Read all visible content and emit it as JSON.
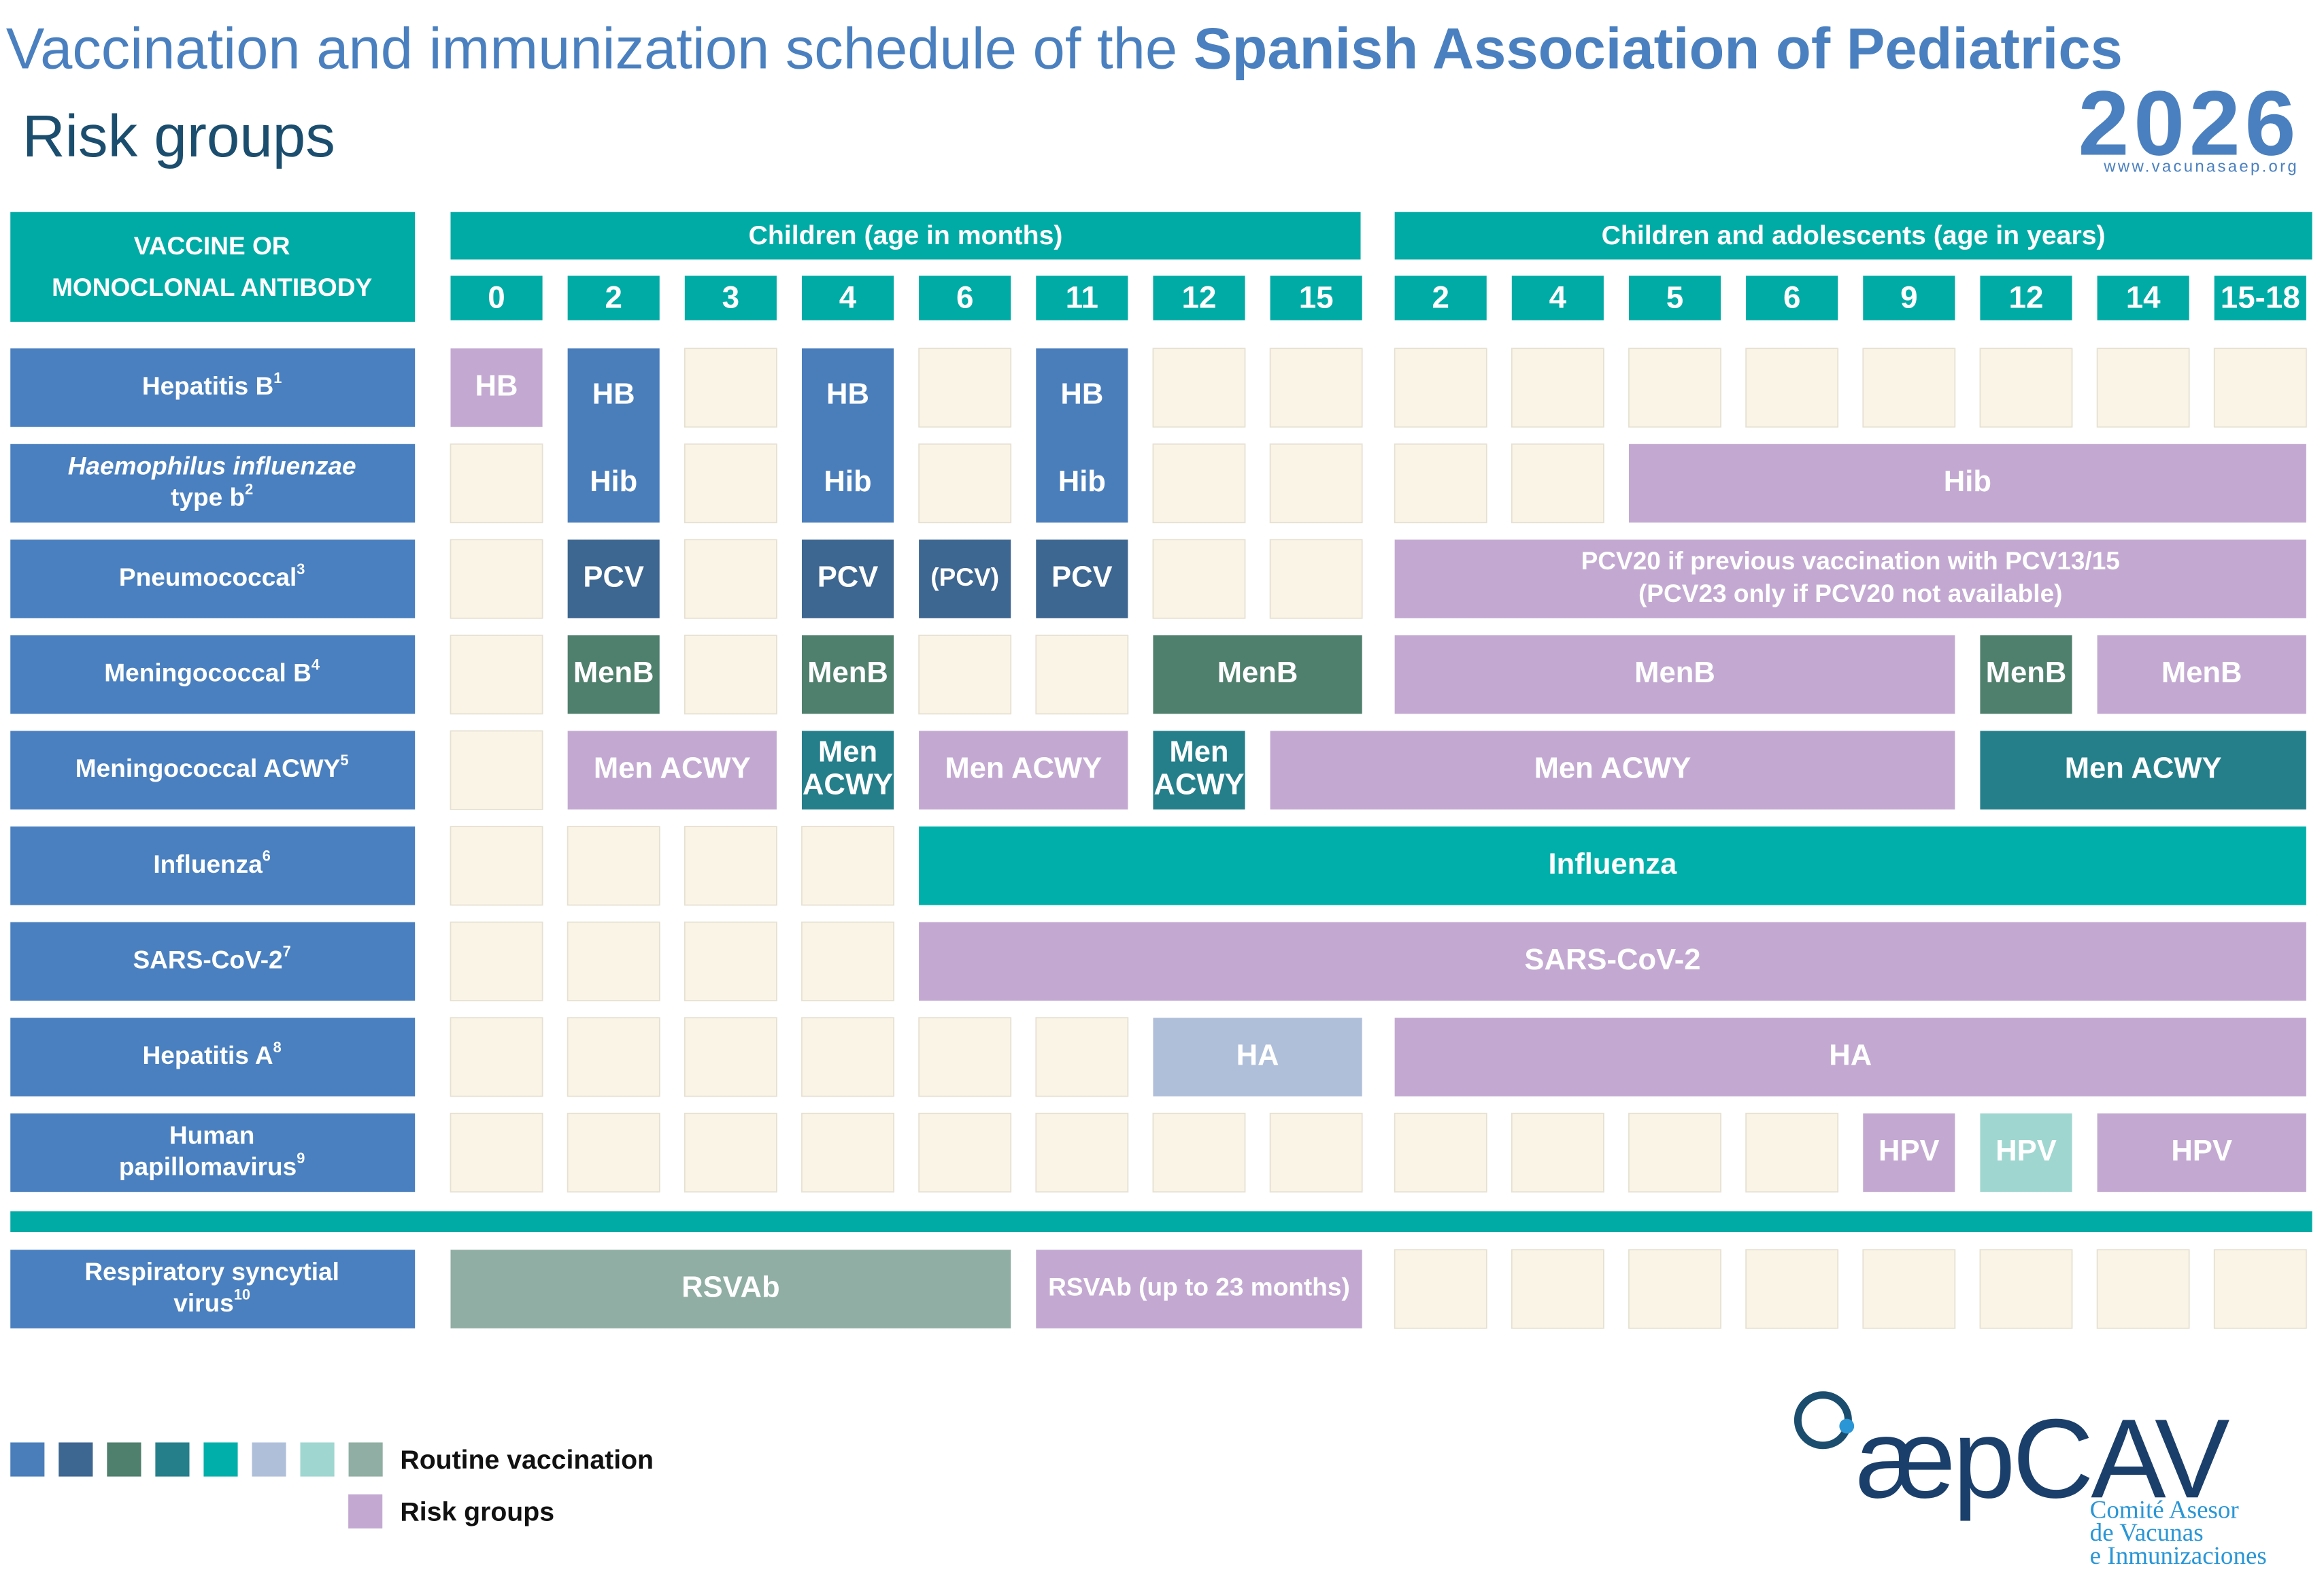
{
  "header": {
    "title_plain": "Vaccination and immunization schedule of the",
    "title_bold": "Spanish Association of Pediatrics",
    "subtitle": "Risk groups",
    "year": "2026",
    "url": "www.vacunasaep.org"
  },
  "table": {
    "corner": [
      "VACCINE OR",
      "MONOCLONAL ANTIBODY"
    ],
    "groups": [
      "Children (age in months)",
      "Children and adolescents (age in years)"
    ],
    "columns": [
      "0",
      "2",
      "3",
      "4",
      "6",
      "11",
      "12",
      "15",
      "2",
      "4",
      "5",
      "6",
      "9",
      "12",
      "14",
      "15-18"
    ],
    "rows": [
      {
        "label": [
          "Hepatitis B"
        ],
        "note": "1",
        "blocks": [
          "HB",
          "HB",
          "HB",
          "HB"
        ]
      },
      {
        "label": [
          "Haemophilus influenzae",
          "type b"
        ],
        "note": "2",
        "blocks": [
          "Hib",
          "Hib",
          "Hib",
          "Hib"
        ]
      },
      {
        "label": [
          "Pneumococcal"
        ],
        "note": "3",
        "blocks": [
          "PCV",
          "PCV",
          "(PCV)",
          "PCV",
          [
            "PCV20 if previous vaccination with PCV13/15",
            "(PCV23 only if PCV20 not available)"
          ]
        ]
      },
      {
        "label": [
          "Meningococcal B"
        ],
        "note": "4",
        "blocks": [
          "MenB",
          "MenB",
          "MenB",
          "MenB",
          "MenB",
          "MenB"
        ]
      },
      {
        "label": [
          "Meningococcal ACWY"
        ],
        "note": "5",
        "blocks": [
          "Men ACWY",
          [
            "Men",
            "ACWY"
          ],
          "Men ACWY",
          [
            "Men",
            "ACWY"
          ],
          "Men ACWY",
          "Men ACWY"
        ]
      },
      {
        "label": [
          "Influenza"
        ],
        "note": "6",
        "blocks": [
          "Influenza"
        ]
      },
      {
        "label": [
          "SARS-CoV-2"
        ],
        "note": "7",
        "blocks": [
          "SARS-CoV-2"
        ]
      },
      {
        "label": [
          "Hepatitis A"
        ],
        "note": "8",
        "blocks": [
          "HA",
          "HA"
        ]
      },
      {
        "label": [
          "Human",
          "papillomavirus"
        ],
        "note": "9",
        "blocks": [
          "HPV",
          "HPV",
          "HPV"
        ]
      },
      {
        "label": [
          "Respiratory syncytial",
          "virus"
        ],
        "note": "10",
        "blocks": [
          "RSVAb",
          "RSVAb (up to 23 months)"
        ]
      }
    ]
  },
  "legend": [
    "Routine vaccination",
    "Risk groups"
  ],
  "logo": {
    "name": "æpCAV",
    "lines": [
      "Comité Asesor",
      "de Vacunas",
      "e Inmunizaciones"
    ]
  }
}
